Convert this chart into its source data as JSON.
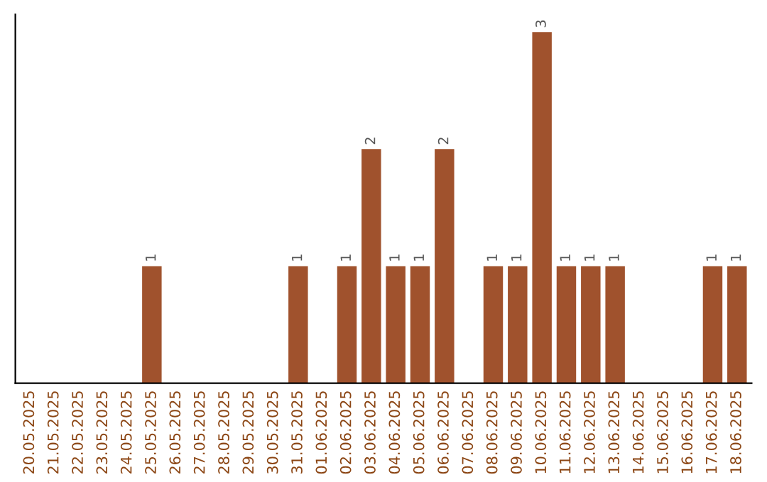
{
  "chart_data": {
    "type": "bar",
    "categories": [
      "20.05.2025",
      "21.05.2025",
      "22.05.2025",
      "23.05.2025",
      "24.05.2025",
      "25.05.2025",
      "26.05.2025",
      "27.05.2025",
      "28.05.2025",
      "29.05.2025",
      "30.05.2025",
      "31.05.2025",
      "01.06.2025",
      "02.06.2025",
      "03.06.2025",
      "04.06.2025",
      "05.06.2025",
      "06.06.2025",
      "07.06.2025",
      "08.06.2025",
      "09.06.2025",
      "10.06.2025",
      "11.06.2025",
      "12.06.2025",
      "13.06.2025",
      "14.06.2025",
      "15.06.2025",
      "16.06.2025",
      "17.06.2025",
      "18.06.2025"
    ],
    "values": [
      0,
      0,
      0,
      0,
      0,
      1,
      0,
      0,
      0,
      0,
      0,
      1,
      0,
      1,
      2,
      1,
      1,
      2,
      0,
      1,
      1,
      3,
      1,
      1,
      1,
      0,
      0,
      0,
      1,
      1
    ],
    "value_labels": [
      null,
      null,
      null,
      null,
      null,
      "1",
      null,
      null,
      null,
      null,
      null,
      "1",
      null,
      "1",
      "2",
      "1",
      "1",
      "2",
      null,
      "1",
      "1",
      "3",
      "1",
      "1",
      "1",
      null,
      null,
      null,
      "1",
      "1"
    ],
    "color": "#a0522d",
    "tick_labels": "x",
    "grid": false,
    "legend": false
  }
}
